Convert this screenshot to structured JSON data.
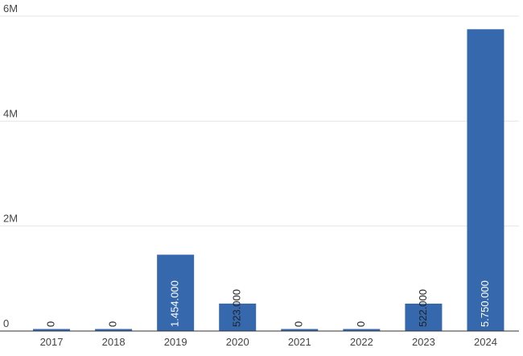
{
  "chart_data": {
    "type": "bar",
    "categories": [
      "2017",
      "2018",
      "2019",
      "2020",
      "2021",
      "2022",
      "2023",
      "2024"
    ],
    "values": [
      0,
      0,
      1454000,
      523000,
      0,
      0,
      522000,
      5750000
    ],
    "value_labels": [
      "0",
      "0",
      "1.454.000",
      "523.000",
      "0",
      "0",
      "522.000",
      "5.750.000"
    ],
    "color": "#3568ad",
    "ylim": [
      0,
      6000000
    ],
    "yticks": [
      0,
      {
        "value": 2000000,
        "label": "2M"
      },
      {
        "value": 4000000,
        "label": "4M"
      },
      {
        "value": 6000000,
        "label": "6M"
      }
    ],
    "grid": true
  }
}
